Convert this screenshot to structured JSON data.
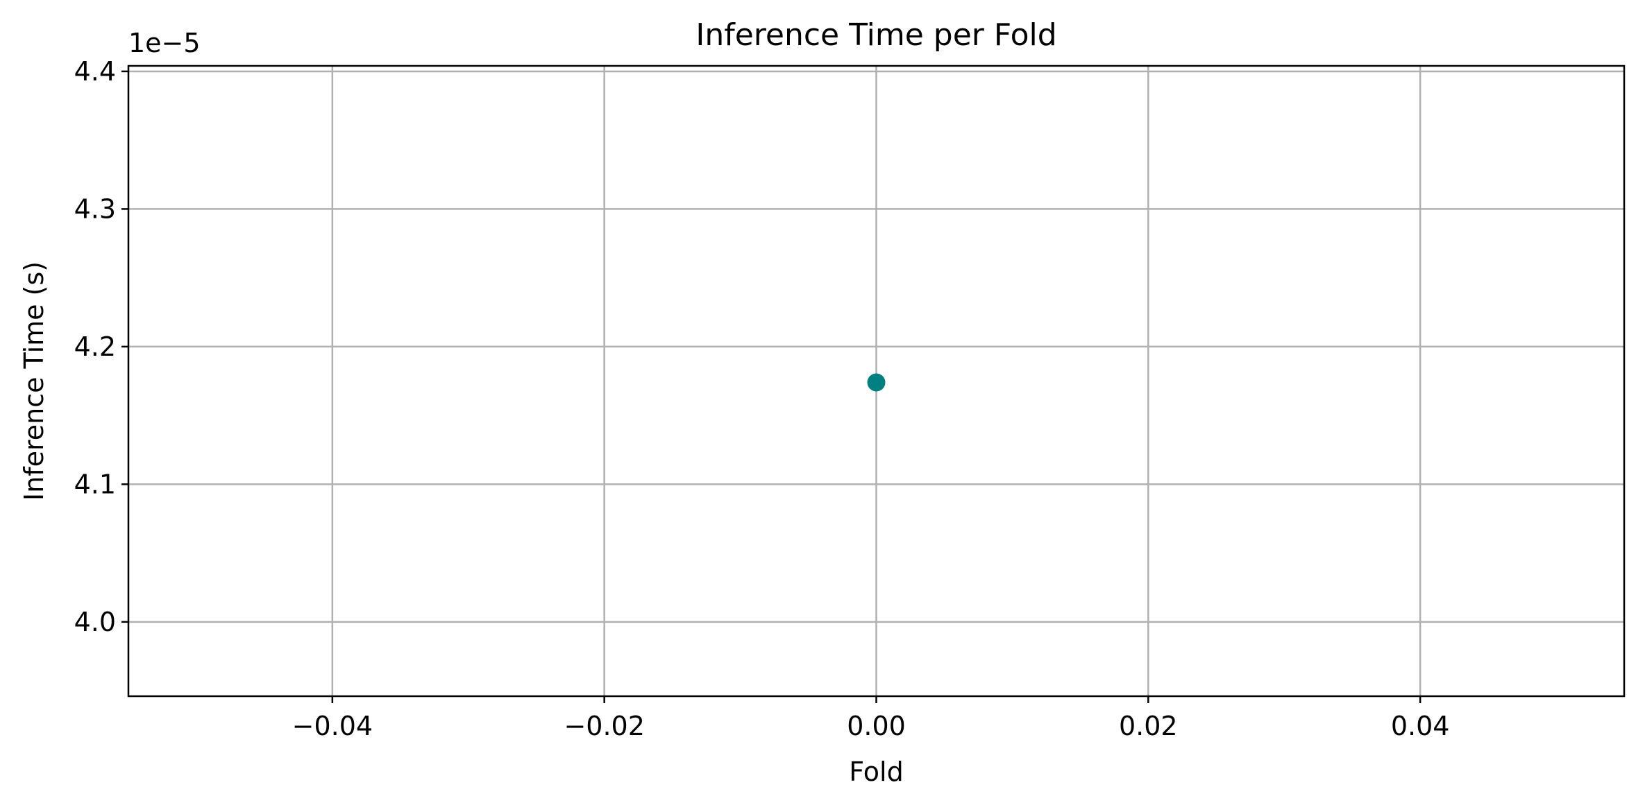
{
  "chart_data": {
    "type": "scatter",
    "title": "Inference Time per Fold",
    "xlabel": "Fold",
    "ylabel": "Inference Time (s)",
    "y_offset_label": "1e−5",
    "xlim": [
      -0.055,
      0.055
    ],
    "ylim": [
      3.946,
      4.404
    ],
    "x_ticks": [
      -0.04,
      -0.02,
      0.0,
      0.02,
      0.04
    ],
    "x_tick_labels": [
      "−0.04",
      "−0.02",
      "0.00",
      "0.02",
      "0.04"
    ],
    "y_ticks": [
      4.0,
      4.1,
      4.2,
      4.3,
      4.4
    ],
    "y_tick_labels": [
      "4.0",
      "4.1",
      "4.2",
      "4.3",
      "4.4"
    ],
    "grid": true,
    "series": [
      {
        "x": [
          0
        ],
        "y": [
          4.174
        ],
        "color": "#008080"
      }
    ]
  }
}
